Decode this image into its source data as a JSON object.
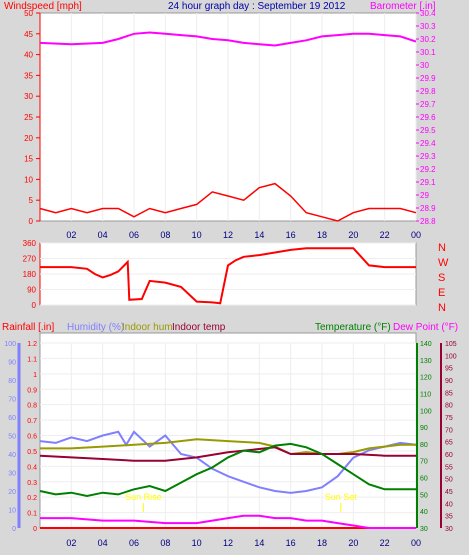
{
  "chart_data": [
    {
      "type": "line",
      "title": "24 hour graph day : September 19 2012",
      "x_ticks": [
        "02",
        "04",
        "06",
        "08",
        "10",
        "12",
        "14",
        "16",
        "18",
        "20",
        "22",
        "00"
      ],
      "left_axis": {
        "label": "Windspeed [mph]",
        "color": "#ff0000",
        "ticks": [
          "0",
          "5",
          "10",
          "15",
          "20",
          "25",
          "30",
          "35",
          "40",
          "45",
          "50"
        ],
        "range": [
          0,
          50
        ]
      },
      "right_axis": {
        "label": "Barometer [.in]",
        "color": "#ff00ff",
        "ticks": [
          "28.8",
          "28.9",
          "29",
          "29.1",
          "29.2",
          "29.3",
          "29.4",
          "29.5",
          "29.6",
          "29.7",
          "29.8",
          "29.9",
          "30",
          "30.1",
          "30.2",
          "30.3",
          "30.4"
        ],
        "range": [
          28.8,
          30.4
        ]
      },
      "series": [
        {
          "name": "Windspeed",
          "color": "#ff0000",
          "hours": [
            0,
            1,
            2,
            3,
            4,
            5,
            6,
            7,
            8,
            9,
            10,
            11,
            12,
            13,
            14,
            15,
            16,
            17,
            18,
            19,
            20,
            21,
            22,
            23,
            24
          ],
          "values": [
            3,
            2,
            3,
            2,
            3,
            3,
            1,
            3,
            2,
            3,
            4,
            7,
            6,
            5,
            8,
            9,
            6,
            2,
            1,
            0,
            2,
            3,
            3,
            3,
            2
          ]
        },
        {
          "name": "Barometer",
          "color": "#ff00ff",
          "hours": [
            0,
            2,
            4,
            5,
            6,
            7,
            8,
            9,
            10,
            11,
            12,
            13,
            14,
            15,
            16,
            17,
            18,
            19,
            20,
            21,
            22,
            23,
            24
          ],
          "values": [
            30.17,
            30.16,
            30.17,
            30.2,
            30.24,
            30.25,
            30.24,
            30.23,
            30.22,
            30.2,
            30.19,
            30.17,
            30.16,
            30.15,
            30.17,
            30.19,
            30.22,
            30.23,
            30.24,
            30.24,
            30.23,
            30.22,
            30.18
          ]
        }
      ]
    },
    {
      "type": "line",
      "left_axis": {
        "ticks": [
          "0",
          "90",
          "180",
          "270",
          "360"
        ],
        "range": [
          0,
          360
        ],
        "color": "#ff0000"
      },
      "right_labels": [
        "N",
        "W",
        "S",
        "E",
        "N"
      ],
      "series": [
        {
          "name": "Wind direction",
          "color": "#ff0000",
          "hours": [
            0,
            2,
            3,
            3.5,
            4,
            4.5,
            5,
            5.6,
            5.7,
            6.5,
            7,
            8,
            9,
            10,
            11,
            11.5,
            12,
            12.5,
            13,
            14,
            15,
            16,
            17,
            18,
            19,
            20,
            21,
            22,
            23,
            24
          ],
          "values": [
            220,
            220,
            210,
            180,
            160,
            175,
            195,
            250,
            30,
            35,
            140,
            130,
            105,
            20,
            15,
            10,
            230,
            260,
            280,
            290,
            305,
            320,
            330,
            330,
            330,
            330,
            230,
            220,
            220,
            220
          ]
        }
      ]
    },
    {
      "type": "line",
      "legend": [
        {
          "text": "Rainfall [.in]",
          "color": "#ff0000"
        },
        {
          "text": "Humidity (%)",
          "color": "#8080ff"
        },
        {
          "text": "Indoor hum",
          "color": "#999900"
        },
        {
          "text": "Indoor temp",
          "color": "#990033"
        },
        {
          "text": "Temperature (°F)",
          "color": "#008000"
        },
        {
          "text": "Dew Point (°F)",
          "color": "#ff00ff"
        }
      ],
      "rain_ticks": [
        "0",
        "0.1",
        "0.2",
        "0.3",
        "0.4",
        "0.5",
        "0.6",
        "0.7",
        "0.8",
        "0.9",
        "1",
        "1.1",
        "1.2"
      ],
      "humidity_ticks": [
        "0",
        "10",
        "20",
        "30",
        "40",
        "50",
        "60",
        "70",
        "80",
        "90",
        "100"
      ],
      "temp_ticks": [
        "30",
        "40",
        "50",
        "60",
        "70",
        "80",
        "90",
        "100",
        "110",
        "120",
        "130",
        "140"
      ],
      "dew_ticks": [
        "30",
        "35",
        "40",
        "45",
        "50",
        "55",
        "60",
        "65",
        "70",
        "75",
        "80",
        "85",
        "90",
        "95",
        "100",
        "105"
      ],
      "annotations": [
        {
          "text": "Sun Rise",
          "hour": 6.6
        },
        {
          "text": "Sun Set",
          "hour": 19.2
        }
      ],
      "series": [
        {
          "name": "Rainfall",
          "color": "#ff0000",
          "hours": [
            0,
            24
          ],
          "values": [
            0,
            0
          ]
        },
        {
          "name": "Humidity",
          "color": "#8080ff",
          "hours": [
            0,
            1,
            2,
            3,
            4,
            5,
            5.5,
            6,
            7,
            8,
            9,
            10,
            11,
            12,
            13,
            14,
            15,
            16,
            17,
            18,
            19,
            20,
            21,
            22,
            23,
            24
          ],
          "values": [
            47,
            46,
            49,
            47,
            50,
            52,
            45,
            52,
            44,
            50,
            40,
            38,
            32,
            28,
            25,
            22,
            20,
            19,
            20,
            22,
            28,
            38,
            42,
            44,
            46,
            45
          ]
        },
        {
          "name": "Indoor hum",
          "color": "#999900",
          "hours": [
            0,
            2,
            4,
            6,
            8,
            10,
            12,
            14,
            15,
            16,
            17,
            18,
            19,
            20,
            21,
            22,
            23,
            24
          ],
          "values": [
            43,
            43,
            44,
            45,
            46,
            48,
            47,
            46,
            44,
            40,
            41,
            40,
            40,
            41,
            43,
            44,
            45,
            45
          ]
        },
        {
          "name": "Indoor temp",
          "color": "#990033",
          "hours": [
            0,
            2,
            4,
            6,
            8,
            10,
            12,
            14,
            15,
            16,
            18,
            20,
            22,
            24
          ],
          "values": [
            73,
            72,
            71,
            70,
            70,
            72,
            75,
            77,
            78,
            74,
            74,
            74,
            73,
            73
          ]
        },
        {
          "name": "Temperature",
          "color": "#008000",
          "hours": [
            0,
            1,
            2,
            3,
            4,
            5,
            6,
            7,
            8,
            9,
            10,
            11,
            12,
            13,
            14,
            15,
            16,
            17,
            18,
            19,
            20,
            21,
            22,
            23,
            24
          ],
          "values": [
            52,
            50,
            51,
            49,
            51,
            50,
            53,
            55,
            52,
            57,
            62,
            66,
            72,
            76,
            75,
            79,
            80,
            78,
            74,
            68,
            62,
            56,
            53,
            53,
            53
          ]
        },
        {
          "name": "Dew Point",
          "color": "#ff00ff",
          "hours": [
            0,
            2,
            4,
            6,
            8,
            10,
            12,
            13,
            14,
            15,
            16,
            17,
            18,
            19,
            20,
            21,
            22,
            23,
            24
          ],
          "values": [
            34,
            34,
            33,
            33,
            32,
            32,
            34,
            35,
            35,
            34,
            34,
            33,
            33,
            32,
            31,
            30,
            30,
            30,
            30
          ]
        }
      ]
    }
  ]
}
